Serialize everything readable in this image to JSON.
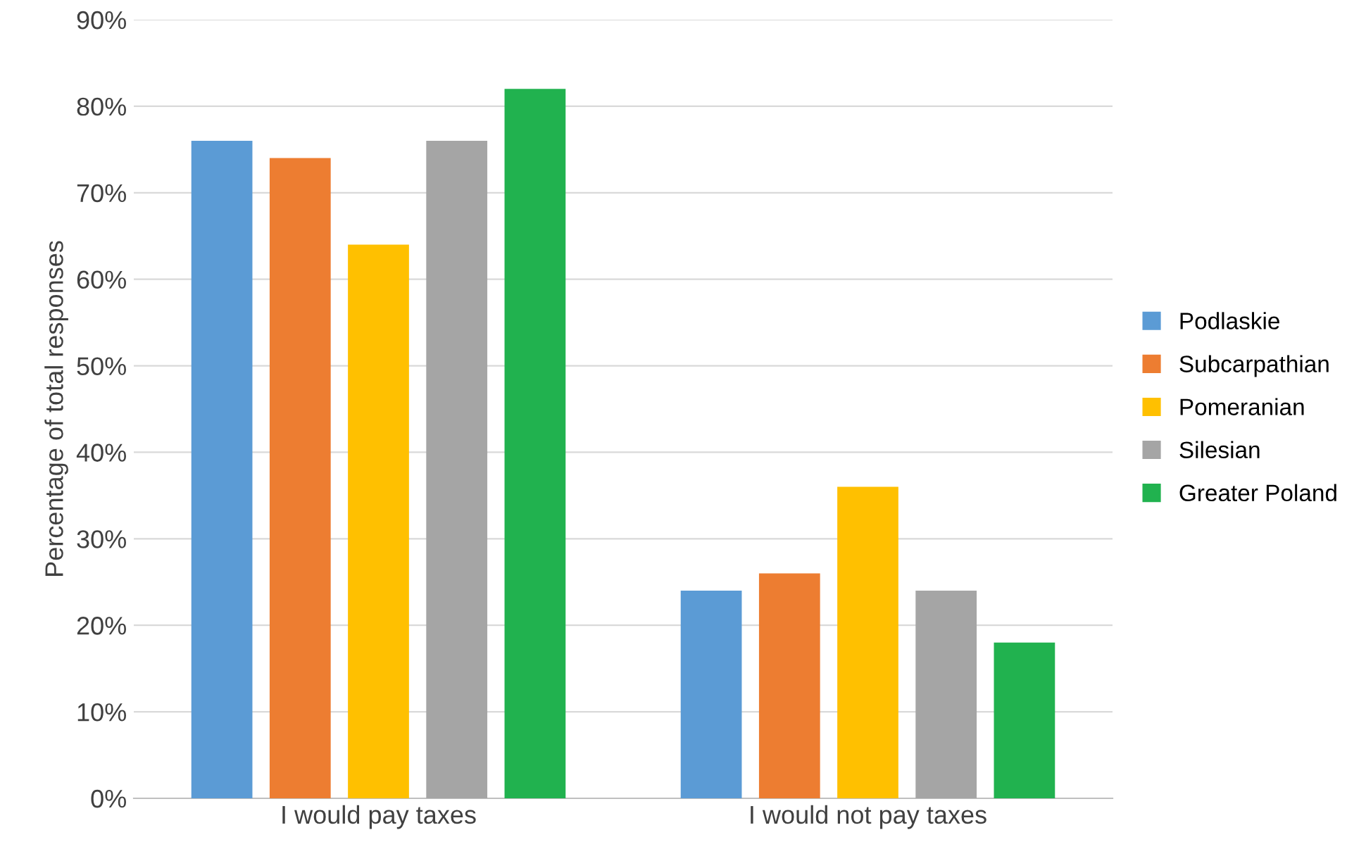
{
  "chart_data": {
    "type": "bar",
    "ylabel": "Percentage of total responses",
    "categories": [
      "I would pay taxes",
      "I would not pay taxes"
    ],
    "series": [
      {
        "name": "Podlaskie",
        "color": "#5b9bd5",
        "values": [
          76,
          24
        ]
      },
      {
        "name": "Subcarpathian",
        "color": "#ed7d31",
        "values": [
          74,
          26
        ]
      },
      {
        "name": "Pomeranian",
        "color": "#ffc000",
        "values": [
          64,
          36
        ]
      },
      {
        "name": "Silesian",
        "color": "#a5a5a5",
        "values": [
          76,
          24
        ]
      },
      {
        "name": "Greater Poland",
        "color": "#21b24f",
        "values": [
          82,
          18
        ]
      }
    ],
    "ylim": [
      0,
      90
    ],
    "yticks": [
      {
        "value": 0,
        "label": "0%"
      },
      {
        "value": 10,
        "label": "10%"
      },
      {
        "value": 20,
        "label": "20%"
      },
      {
        "value": 30,
        "label": "30%"
      },
      {
        "value": 40,
        "label": "40%"
      },
      {
        "value": 50,
        "label": "50%"
      },
      {
        "value": 60,
        "label": "60%"
      },
      {
        "value": 70,
        "label": "70%"
      },
      {
        "value": 80,
        "label": "80%"
      },
      {
        "value": 90,
        "label": "90%"
      }
    ],
    "grid": "y",
    "legend": "right"
  }
}
